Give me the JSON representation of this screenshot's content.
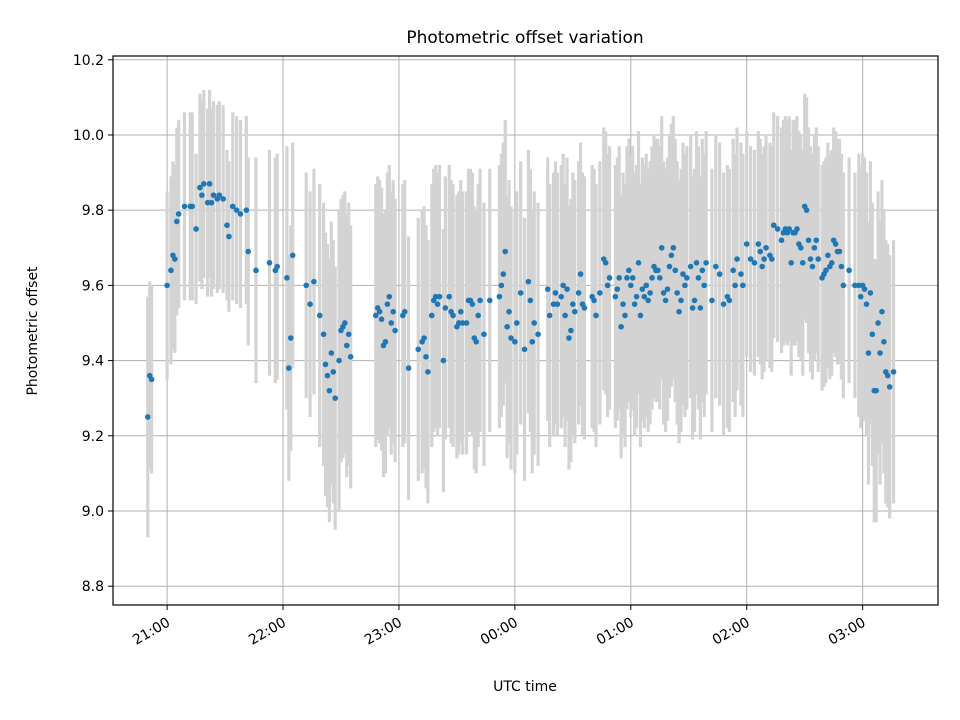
{
  "chart_data": {
    "type": "scatter",
    "title": "Photometric offset variation",
    "xlabel": "UTC time",
    "ylabel": "Photometric offset",
    "x_unit": "UTC time (hours, continuing past midnight)",
    "xlim": [
      "20:32",
      "03:39"
    ],
    "ylim": [
      8.75,
      10.21
    ],
    "grid": true,
    "x_tick_labels": [
      "21:00",
      "22:00",
      "23:00",
      "00:00",
      "01:00",
      "02:00",
      "03:00"
    ],
    "y_ticks": [
      8.8,
      9.0,
      9.2,
      9.4,
      9.6,
      9.8,
      10.0,
      10.2
    ],
    "y_tick_labels": [
      "8.8",
      "9.0",
      "9.2",
      "9.4",
      "9.6",
      "9.8",
      "10.0",
      "10.2"
    ],
    "colors": {
      "points": "#1f77b4",
      "errorbars": "#d3d3d3",
      "grid": "#b0b0b0"
    },
    "points": [
      [
        "20:50",
        9.25,
        0.32
      ],
      [
        "20:51",
        9.36,
        0.25
      ],
      [
        "20:52",
        9.35,
        0.25
      ],
      [
        "21:00",
        9.6,
        0.25
      ],
      [
        "21:02",
        9.64,
        0.25
      ],
      [
        "21:03",
        9.68,
        0.25
      ],
      [
        "21:04",
        9.67,
        0.25
      ],
      [
        "21:05",
        9.77,
        0.25
      ],
      [
        "21:06",
        9.79,
        0.25
      ],
      [
        "21:09",
        9.81,
        0.25
      ],
      [
        "21:12",
        9.81,
        0.25
      ],
      [
        "21:13",
        9.81,
        0.25
      ],
      [
        "21:15",
        9.75,
        0.2
      ],
      [
        "21:17",
        9.86,
        0.25
      ],
      [
        "21:18",
        9.84,
        0.25
      ],
      [
        "21:19",
        9.87,
        0.25
      ],
      [
        "21:21",
        9.82,
        0.25
      ],
      [
        "21:22",
        9.87,
        0.25
      ],
      [
        "21:23",
        9.82,
        0.25
      ],
      [
        "21:24",
        9.84,
        0.25
      ],
      [
        "21:26",
        9.83,
        0.25
      ],
      [
        "21:27",
        9.84,
        0.25
      ],
      [
        "21:29",
        9.83,
        0.25
      ],
      [
        "21:31",
        9.76,
        0.2
      ],
      [
        "21:32",
        9.73,
        0.2
      ],
      [
        "21:34",
        9.81,
        0.25
      ],
      [
        "21:36",
        9.8,
        0.25
      ],
      [
        "21:38",
        9.79,
        0.25
      ],
      [
        "21:41",
        9.8,
        0.25
      ],
      [
        "21:42",
        9.69,
        0.25
      ],
      [
        "21:46",
        9.64,
        0.3
      ],
      [
        "21:53",
        9.66,
        0.3
      ],
      [
        "21:56",
        9.64,
        0.3
      ],
      [
        "21:57",
        9.65,
        0.3
      ],
      [
        "22:02",
        9.62,
        0.35
      ],
      [
        "22:03",
        9.38,
        0.3
      ],
      [
        "22:04",
        9.46,
        0.3
      ],
      [
        "22:05",
        9.68,
        0.3
      ],
      [
        "22:12",
        9.6,
        0.3
      ],
      [
        "22:14",
        9.55,
        0.3
      ],
      [
        "22:16",
        9.61,
        0.3
      ],
      [
        "22:19",
        9.52,
        0.35
      ],
      [
        "22:21",
        9.47,
        0.35
      ],
      [
        "22:22",
        9.39,
        0.35
      ],
      [
        "22:23",
        9.36,
        0.35
      ],
      [
        "22:24",
        9.32,
        0.35
      ],
      [
        "22:25",
        9.42,
        0.35
      ],
      [
        "22:26",
        9.37,
        0.35
      ],
      [
        "22:27",
        9.3,
        0.35
      ],
      [
        "22:29",
        9.4,
        0.4
      ],
      [
        "22:30",
        9.48,
        0.35
      ],
      [
        "22:31",
        9.49,
        0.35
      ],
      [
        "22:32",
        9.5,
        0.35
      ],
      [
        "22:33",
        9.44,
        0.35
      ],
      [
        "22:34",
        9.47,
        0.35
      ],
      [
        "22:35",
        9.41,
        0.35
      ],
      [
        "22:48",
        9.52,
        0.35
      ],
      [
        "22:49",
        9.54,
        0.35
      ],
      [
        "22:50",
        9.53,
        0.35
      ],
      [
        "22:51",
        9.51,
        0.35
      ],
      [
        "22:52",
        9.44,
        0.35
      ],
      [
        "22:53",
        9.45,
        0.35
      ],
      [
        "22:54",
        9.55,
        0.35
      ],
      [
        "22:55",
        9.57,
        0.35
      ],
      [
        "22:56",
        9.5,
        0.35
      ],
      [
        "22:57",
        9.53,
        0.35
      ],
      [
        "22:58",
        9.48,
        0.35
      ],
      [
        "23:02",
        9.52,
        0.35
      ],
      [
        "23:03",
        9.53,
        0.35
      ],
      [
        "23:05",
        9.38,
        0.35
      ],
      [
        "23:10",
        9.43,
        0.35
      ],
      [
        "23:12",
        9.45,
        0.35
      ],
      [
        "23:13",
        9.46,
        0.35
      ],
      [
        "23:14",
        9.41,
        0.35
      ],
      [
        "23:15",
        9.37,
        0.35
      ],
      [
        "23:17",
        9.52,
        0.35
      ],
      [
        "23:18",
        9.56,
        0.35
      ],
      [
        "23:19",
        9.57,
        0.35
      ],
      [
        "23:20",
        9.55,
        0.35
      ],
      [
        "23:21",
        9.57,
        0.35
      ],
      [
        "23:23",
        9.4,
        0.35
      ],
      [
        "23:24",
        9.54,
        0.35
      ],
      [
        "23:26",
        9.57,
        0.35
      ],
      [
        "23:27",
        9.53,
        0.35
      ],
      [
        "23:28",
        9.52,
        0.35
      ],
      [
        "23:30",
        9.49,
        0.35
      ],
      [
        "23:31",
        9.5,
        0.35
      ],
      [
        "23:32",
        9.53,
        0.35
      ],
      [
        "23:33",
        9.5,
        0.35
      ],
      [
        "23:35",
        9.5,
        0.35
      ],
      [
        "23:36",
        9.56,
        0.35
      ],
      [
        "23:37",
        9.56,
        0.35
      ],
      [
        "23:38",
        9.55,
        0.35
      ],
      [
        "23:39",
        9.46,
        0.35
      ],
      [
        "23:40",
        9.45,
        0.35
      ],
      [
        "23:41",
        9.52,
        0.35
      ],
      [
        "23:42",
        9.56,
        0.35
      ],
      [
        "23:44",
        9.47,
        0.35
      ],
      [
        "23:47",
        9.56,
        0.35
      ],
      [
        "23:52",
        9.57,
        0.35
      ],
      [
        "23:53",
        9.6,
        0.35
      ],
      [
        "23:54",
        9.63,
        0.35
      ],
      [
        "23:55",
        9.69,
        0.35
      ],
      [
        "23:56",
        9.49,
        0.35
      ],
      [
        "23:57",
        9.53,
        0.35
      ],
      [
        "23:58",
        9.46,
        0.35
      ],
      [
        "00:00",
        9.45,
        0.35
      ],
      [
        "00:01",
        9.5,
        0.35
      ],
      [
        "00:03",
        9.58,
        0.35
      ],
      [
        "00:05",
        9.43,
        0.35
      ],
      [
        "00:07",
        9.61,
        0.35
      ],
      [
        "00:08",
        9.56,
        0.35
      ],
      [
        "00:09",
        9.45,
        0.35
      ],
      [
        "00:10",
        9.5,
        0.35
      ],
      [
        "00:12",
        9.47,
        0.35
      ],
      [
        "00:17",
        9.59,
        0.35
      ],
      [
        "00:18",
        9.52,
        0.35
      ],
      [
        "00:20",
        9.55,
        0.35
      ],
      [
        "00:21",
        9.58,
        0.35
      ],
      [
        "00:22",
        9.55,
        0.35
      ],
      [
        "00:24",
        9.57,
        0.35
      ],
      [
        "00:25",
        9.6,
        0.35
      ],
      [
        "00:26",
        9.52,
        0.35
      ],
      [
        "00:27",
        9.59,
        0.35
      ],
      [
        "00:28",
        9.46,
        0.35
      ],
      [
        "00:29",
        9.48,
        0.35
      ],
      [
        "00:30",
        9.55,
        0.35
      ],
      [
        "00:31",
        9.53,
        0.35
      ],
      [
        "00:33",
        9.58,
        0.35
      ],
      [
        "00:34",
        9.63,
        0.35
      ],
      [
        "00:35",
        9.55,
        0.35
      ],
      [
        "00:36",
        9.54,
        0.35
      ],
      [
        "00:40",
        9.57,
        0.35
      ],
      [
        "00:41",
        9.56,
        0.35
      ],
      [
        "00:42",
        9.52,
        0.35
      ],
      [
        "00:44",
        9.58,
        0.35
      ],
      [
        "00:46",
        9.67,
        0.35
      ],
      [
        "00:47",
        9.66,
        0.35
      ],
      [
        "00:48",
        9.6,
        0.35
      ],
      [
        "00:49",
        9.62,
        0.35
      ],
      [
        "00:52",
        9.57,
        0.35
      ],
      [
        "00:53",
        9.59,
        0.35
      ],
      [
        "00:54",
        9.62,
        0.35
      ],
      [
        "00:55",
        9.49,
        0.35
      ],
      [
        "00:56",
        9.55,
        0.35
      ],
      [
        "00:57",
        9.52,
        0.35
      ],
      [
        "00:58",
        9.62,
        0.35
      ],
      [
        "00:59",
        9.64,
        0.35
      ],
      [
        "01:00",
        9.6,
        0.35
      ],
      [
        "01:01",
        9.62,
        0.35
      ],
      [
        "01:02",
        9.55,
        0.35
      ],
      [
        "01:03",
        9.57,
        0.35
      ],
      [
        "01:04",
        9.66,
        0.35
      ],
      [
        "01:05",
        9.52,
        0.35
      ],
      [
        "01:06",
        9.59,
        0.35
      ],
      [
        "01:07",
        9.57,
        0.35
      ],
      [
        "01:08",
        9.6,
        0.35
      ],
      [
        "01:09",
        9.56,
        0.35
      ],
      [
        "01:10",
        9.58,
        0.35
      ],
      [
        "01:11",
        9.62,
        0.35
      ],
      [
        "01:12",
        9.65,
        0.35
      ],
      [
        "01:13",
        9.64,
        0.35
      ],
      [
        "01:14",
        9.64,
        0.35
      ],
      [
        "01:15",
        9.62,
        0.35
      ],
      [
        "01:16",
        9.7,
        0.35
      ],
      [
        "01:17",
        9.58,
        0.35
      ],
      [
        "01:18",
        9.56,
        0.35
      ],
      [
        "01:19",
        9.59,
        0.35
      ],
      [
        "01:20",
        9.65,
        0.35
      ],
      [
        "01:21",
        9.68,
        0.35
      ],
      [
        "01:22",
        9.7,
        0.35
      ],
      [
        "01:23",
        9.64,
        0.35
      ],
      [
        "01:24",
        9.58,
        0.35
      ],
      [
        "01:25",
        9.53,
        0.35
      ],
      [
        "01:26",
        9.56,
        0.35
      ],
      [
        "01:27",
        9.63,
        0.35
      ],
      [
        "01:28",
        9.6,
        0.35
      ],
      [
        "01:29",
        9.62,
        0.35
      ],
      [
        "01:31",
        9.65,
        0.35
      ],
      [
        "01:32",
        9.54,
        0.35
      ],
      [
        "01:33",
        9.56,
        0.35
      ],
      [
        "01:34",
        9.66,
        0.35
      ],
      [
        "01:35",
        9.62,
        0.35
      ],
      [
        "01:36",
        9.54,
        0.35
      ],
      [
        "01:37",
        9.64,
        0.35
      ],
      [
        "01:38",
        9.6,
        0.35
      ],
      [
        "01:39",
        9.66,
        0.35
      ],
      [
        "01:42",
        9.56,
        0.35
      ],
      [
        "01:44",
        9.65,
        0.35
      ],
      [
        "01:46",
        9.63,
        0.35
      ],
      [
        "01:48",
        9.55,
        0.35
      ],
      [
        "01:50",
        9.57,
        0.35
      ],
      [
        "01:51",
        9.56,
        0.35
      ],
      [
        "01:53",
        9.64,
        0.35
      ],
      [
        "01:54",
        9.6,
        0.35
      ],
      [
        "01:55",
        9.67,
        0.35
      ],
      [
        "01:57",
        9.63,
        0.35
      ],
      [
        "01:58",
        9.6,
        0.35
      ],
      [
        "02:00",
        9.71,
        0.3
      ],
      [
        "02:02",
        9.67,
        0.3
      ],
      [
        "02:04",
        9.66,
        0.3
      ],
      [
        "02:06",
        9.71,
        0.3
      ],
      [
        "02:07",
        9.69,
        0.3
      ],
      [
        "02:08",
        9.65,
        0.3
      ],
      [
        "02:09",
        9.67,
        0.3
      ],
      [
        "02:10",
        9.7,
        0.3
      ],
      [
        "02:12",
        9.68,
        0.3
      ],
      [
        "02:13",
        9.67,
        0.3
      ],
      [
        "02:14",
        9.76,
        0.3
      ],
      [
        "02:16",
        9.75,
        0.3
      ],
      [
        "02:18",
        9.72,
        0.3
      ],
      [
        "02:19",
        9.74,
        0.3
      ],
      [
        "02:20",
        9.75,
        0.3
      ],
      [
        "02:21",
        9.74,
        0.3
      ],
      [
        "02:22",
        9.75,
        0.3
      ],
      [
        "02:23",
        9.66,
        0.3
      ],
      [
        "02:24",
        9.74,
        0.3
      ],
      [
        "02:25",
        9.74,
        0.3
      ],
      [
        "02:26",
        9.75,
        0.3
      ],
      [
        "02:27",
        9.71,
        0.3
      ],
      [
        "02:28",
        9.7,
        0.3
      ],
      [
        "02:29",
        9.66,
        0.3
      ],
      [
        "02:30",
        9.81,
        0.3
      ],
      [
        "02:31",
        9.8,
        0.3
      ],
      [
        "02:32",
        9.72,
        0.3
      ],
      [
        "02:33",
        9.67,
        0.3
      ],
      [
        "02:34",
        9.65,
        0.3
      ],
      [
        "02:35",
        9.7,
        0.3
      ],
      [
        "02:36",
        9.72,
        0.3
      ],
      [
        "02:37",
        9.67,
        0.3
      ],
      [
        "02:39",
        9.62,
        0.3
      ],
      [
        "02:40",
        9.63,
        0.3
      ],
      [
        "02:41",
        9.64,
        0.3
      ],
      [
        "02:42",
        9.68,
        0.3
      ],
      [
        "02:43",
        9.65,
        0.3
      ],
      [
        "02:44",
        9.66,
        0.3
      ],
      [
        "02:45",
        9.72,
        0.3
      ],
      [
        "02:46",
        9.71,
        0.3
      ],
      [
        "02:47",
        9.69,
        0.3
      ],
      [
        "02:48",
        9.69,
        0.3
      ],
      [
        "02:49",
        9.65,
        0.3
      ],
      [
        "02:50",
        9.6,
        0.3
      ],
      [
        "02:53",
        9.64,
        0.3
      ],
      [
        "02:56",
        9.6,
        0.3
      ],
      [
        "02:58",
        9.6,
        0.35
      ],
      [
        "02:59",
        9.57,
        0.35
      ],
      [
        "03:00",
        9.6,
        0.35
      ],
      [
        "03:01",
        9.59,
        0.35
      ],
      [
        "03:02",
        9.55,
        0.35
      ],
      [
        "03:03",
        9.42,
        0.35
      ],
      [
        "03:04",
        9.58,
        0.35
      ],
      [
        "03:05",
        9.47,
        0.35
      ],
      [
        "03:06",
        9.32,
        0.35
      ],
      [
        "03:07",
        9.32,
        0.35
      ],
      [
        "03:08",
        9.5,
        0.35
      ],
      [
        "03:09",
        9.42,
        0.35
      ],
      [
        "03:10",
        9.53,
        0.35
      ],
      [
        "03:11",
        9.45,
        0.35
      ],
      [
        "03:12",
        9.37,
        0.35
      ],
      [
        "03:13",
        9.36,
        0.35
      ],
      [
        "03:14",
        9.33,
        0.35
      ],
      [
        "03:16",
        9.37,
        0.35
      ]
    ]
  }
}
